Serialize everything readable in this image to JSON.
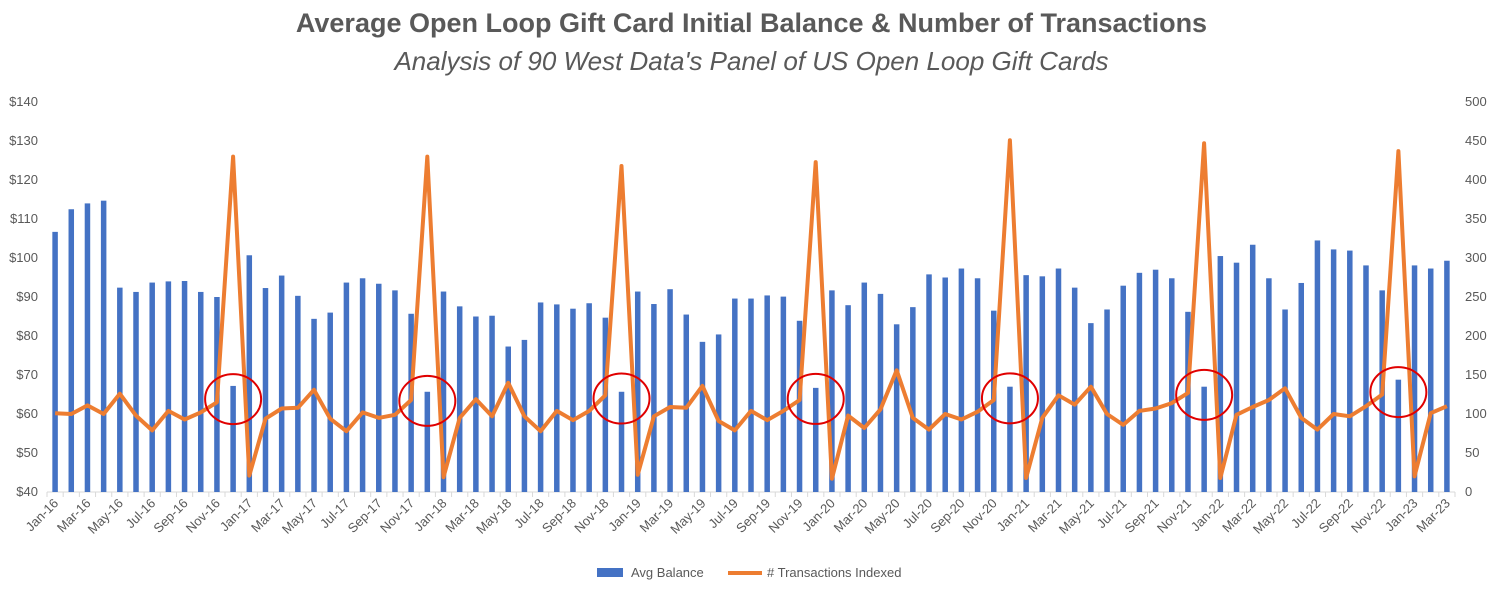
{
  "chart_data": {
    "type": "bar",
    "title": "Average Open Loop Gift Card Initial Balance & Number of Transactions",
    "subtitle": "Analysis of 90 West Data's Panel of US Open Loop Gift Cards",
    "x_tick_labels": [
      "Jan-16",
      "Mar-16",
      "May-16",
      "Jul-16",
      "Sep-16",
      "Nov-16",
      "Jan-17",
      "Mar-17",
      "May-17",
      "Jul-17",
      "Sep-17",
      "Nov-17",
      "Jan-18",
      "Mar-18",
      "May-18",
      "Jul-18",
      "Sep-18",
      "Nov-18",
      "Jan-19",
      "Mar-19",
      "May-19",
      "Jul-19",
      "Sep-19",
      "Nov-19",
      "Jan-20",
      "Mar-20",
      "May-20",
      "Jul-20",
      "Sep-20",
      "Nov-20",
      "Jan-21",
      "Mar-21",
      "May-21",
      "Jul-21",
      "Sep-21",
      "Nov-21",
      "Jan-22",
      "Mar-22",
      "May-22",
      "Jul-22",
      "Sep-22",
      "Nov-22",
      "Jan-23",
      "Mar-23"
    ],
    "y_left": {
      "min": 40,
      "max": 140,
      "step": 10,
      "prefix": "$",
      "tick_labels": [
        "$40",
        "$50",
        "$60",
        "$70",
        "$80",
        "$90",
        "$100",
        "$110",
        "$120",
        "$130",
        "$140"
      ]
    },
    "y_right": {
      "min": 0,
      "max": 500,
      "step": 50,
      "tick_labels": [
        "0",
        "50",
        "100",
        "150",
        "200",
        "250",
        "300",
        "350",
        "400",
        "450",
        "500"
      ]
    },
    "grid": false,
    "legend_position": "bottom",
    "series": [
      {
        "name": "Avg Balance",
        "type": "bar",
        "axis": "left",
        "color": "#4472C4",
        "values": [
          106.7,
          112.5,
          114,
          114.7,
          92.4,
          91.3,
          93.7,
          94,
          94.1,
          91.3,
          90,
          67.2,
          100.7,
          92.3,
          95.5,
          90.3,
          84.4,
          86,
          93.7,
          94.8,
          93.4,
          91.7,
          85.7,
          65.7,
          91.4,
          87.6,
          85,
          85.2,
          77.3,
          79,
          88.6,
          88.1,
          87,
          88.4,
          84.7,
          65.7,
          91.4,
          88.2,
          92,
          85.5,
          78.5,
          80.4,
          89.6,
          89.6,
          90.4,
          90.1,
          83.9,
          66.7,
          91.7,
          87.9,
          93.7,
          90.8,
          83,
          87.4,
          95.8,
          95,
          97.3,
          94.8,
          86.5,
          67,
          95.6,
          95.3,
          97.3,
          92.4,
          83.3,
          86.8,
          92.9,
          96.2,
          97,
          94.8,
          86.2,
          67,
          100.5,
          98.8,
          103.4,
          94.8,
          86.8,
          93.6,
          104.5,
          102.2,
          101.9,
          98.1,
          91.7,
          68.8,
          98.1,
          97.3,
          99.3
        ]
      },
      {
        "name": "# Transactions Indexed",
        "type": "line",
        "axis": "right",
        "color": "#ED7D31",
        "values": [
          101,
          100,
          111,
          100,
          126,
          98,
          79,
          104,
          93,
          102,
          115,
          430,
          21,
          94,
          107,
          108,
          131,
          94,
          78,
          102,
          95,
          99,
          118,
          430,
          19,
          95,
          119,
          97,
          140,
          97,
          78,
          104,
          92,
          104,
          124,
          418,
          22,
          97,
          109,
          108,
          136,
          91,
          79,
          104,
          92,
          104,
          118,
          423,
          17,
          98,
          82,
          106,
          156,
          95,
          80,
          100,
          93,
          103,
          118,
          451,
          18,
          95,
          124,
          112,
          135,
          100,
          86,
          104,
          107,
          114,
          127,
          447,
          18,
          99,
          109,
          118,
          133,
          95,
          80,
          100,
          97,
          110,
          125,
          437,
          20,
          101,
          110
        ]
      }
    ],
    "annotations": {
      "red_circles_over_december_points": 7,
      "circle_color": "#E00000"
    }
  }
}
